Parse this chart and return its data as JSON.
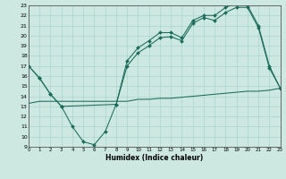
{
  "title": "",
  "xlabel": "Humidex (Indice chaleur)",
  "xlim": [
    0,
    23
  ],
  "ylim": [
    9,
    23
  ],
  "xticks": [
    0,
    1,
    2,
    3,
    4,
    5,
    6,
    7,
    8,
    9,
    10,
    11,
    12,
    13,
    14,
    15,
    16,
    17,
    18,
    19,
    20,
    21,
    22,
    23
  ],
  "yticks": [
    9,
    10,
    11,
    12,
    13,
    14,
    15,
    16,
    17,
    18,
    19,
    20,
    21,
    22,
    23
  ],
  "bg_color": "#cce8e0",
  "line_color": "#1a6b5a",
  "grid_color": "#aad4cc",
  "line1_x": [
    0,
    1,
    2,
    3,
    4,
    5,
    6,
    7,
    8,
    9,
    10,
    11,
    12,
    13,
    14,
    15,
    16,
    17,
    18,
    19,
    20,
    21,
    22,
    23
  ],
  "line1_y": [
    17.0,
    15.8,
    14.2,
    13.0,
    11.0,
    9.5,
    9.2,
    10.5,
    13.2,
    17.0,
    18.3,
    19.0,
    19.8,
    19.9,
    19.5,
    21.2,
    21.8,
    21.5,
    22.3,
    22.8,
    22.8,
    20.8,
    16.8,
    14.8
  ],
  "line2_x": [
    0,
    1,
    2,
    3,
    8,
    9,
    10,
    11,
    12,
    13,
    14,
    15,
    16,
    17,
    18,
    19,
    20,
    21,
    22,
    23
  ],
  "line2_y": [
    17.0,
    15.8,
    14.2,
    13.0,
    13.2,
    17.5,
    18.8,
    19.5,
    20.3,
    20.3,
    19.8,
    21.5,
    22.0,
    22.0,
    22.8,
    23.2,
    23.0,
    21.0,
    17.0,
    14.8
  ],
  "line3_x": [
    0,
    1,
    2,
    3,
    4,
    5,
    6,
    7,
    8,
    9,
    10,
    11,
    12,
    13,
    14,
    15,
    16,
    17,
    18,
    19,
    20,
    21,
    22,
    23
  ],
  "line3_y": [
    13.3,
    13.5,
    13.5,
    13.5,
    13.5,
    13.5,
    13.5,
    13.5,
    13.5,
    13.5,
    13.7,
    13.7,
    13.8,
    13.8,
    13.9,
    14.0,
    14.1,
    14.2,
    14.3,
    14.4,
    14.5,
    14.5,
    14.6,
    14.8
  ]
}
